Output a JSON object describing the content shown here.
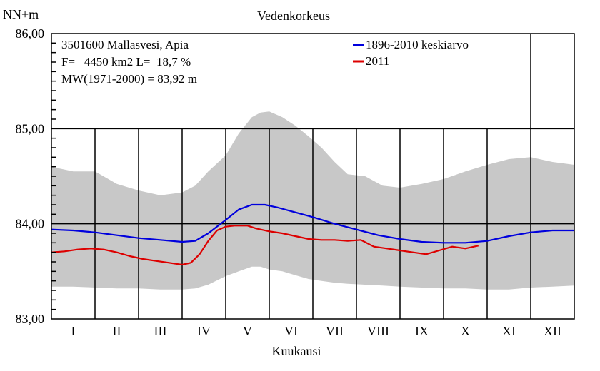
{
  "chart_data": {
    "type": "line",
    "title": "Vedenkorkeus",
    "ylabel": "NN+m",
    "xlabel": "Kuukausi",
    "ylim": [
      83,
      86
    ],
    "yticks": [
      "83,00",
      "84,00",
      "85,00",
      "86,00"
    ],
    "ytick_values": [
      83,
      84,
      85,
      86
    ],
    "months": [
      "I",
      "II",
      "III",
      "IV",
      "V",
      "VI",
      "VII",
      "VIII",
      "IX",
      "X",
      "XI",
      "XII"
    ],
    "info_lines": [
      "3501600 Mallasvesi, Apia",
      "F=   4450 km2 L=  18,7 %",
      "MW(1971-2000) = 83,92 m"
    ],
    "grid": true,
    "legend_position": "top-right",
    "colors": {
      "mean": "#0000dd",
      "year2011": "#dd0000",
      "range": "#c8c8c8"
    },
    "series": [
      {
        "name": "1896-2010 keskiarvo",
        "x_month": [
          0,
          0.5,
          1,
          1.5,
          2,
          2.5,
          3,
          3.3,
          3.6,
          4,
          4.3,
          4.6,
          4.9,
          5.2,
          5.6,
          6,
          6.5,
          7,
          7.5,
          8,
          8.5,
          9,
          9.5,
          10,
          10.5,
          11,
          11.5,
          12
        ],
        "values": [
          83.94,
          83.93,
          83.91,
          83.88,
          83.85,
          83.83,
          83.81,
          83.82,
          83.9,
          84.04,
          84.15,
          84.2,
          84.2,
          84.17,
          84.12,
          84.07,
          84.0,
          83.94,
          83.88,
          83.84,
          83.81,
          83.8,
          83.8,
          83.82,
          83.87,
          83.91,
          83.93,
          83.93
        ]
      },
      {
        "name": "2011",
        "x_month": [
          0,
          0.3,
          0.6,
          0.9,
          1.2,
          1.5,
          1.8,
          2.1,
          2.4,
          2.7,
          3.0,
          3.2,
          3.4,
          3.6,
          3.8,
          4.0,
          4.2,
          4.5,
          4.7,
          5.0,
          5.3,
          5.6,
          5.9,
          6.2,
          6.5,
          6.8,
          7.1,
          7.4,
          7.7,
          8.0,
          8.3,
          8.6,
          8.9,
          9.2,
          9.5,
          9.8
        ],
        "values": [
          83.7,
          83.71,
          83.73,
          83.74,
          83.73,
          83.7,
          83.66,
          83.63,
          83.61,
          83.59,
          83.57,
          83.59,
          83.68,
          83.82,
          83.93,
          83.97,
          83.98,
          83.98,
          83.95,
          83.92,
          83.9,
          83.87,
          83.84,
          83.83,
          83.83,
          83.82,
          83.83,
          83.76,
          83.74,
          83.72,
          83.7,
          83.68,
          83.72,
          83.76,
          83.74,
          83.77
        ]
      }
    ],
    "range_band": {
      "x_month": [
        0,
        0.5,
        1,
        1.5,
        2,
        2.5,
        3,
        3.3,
        3.6,
        4,
        4.3,
        4.6,
        4.8,
        5.0,
        5.3,
        5.6,
        5.9,
        6.2,
        6.5,
        6.8,
        7.2,
        7.6,
        8.0,
        8.5,
        9.0,
        9.5,
        10,
        10.5,
        11,
        11.5,
        12
      ],
      "max": [
        84.6,
        84.55,
        84.55,
        84.42,
        84.35,
        84.3,
        84.33,
        84.4,
        84.55,
        84.72,
        84.95,
        85.12,
        85.17,
        85.18,
        85.12,
        85.03,
        84.92,
        84.8,
        84.65,
        84.52,
        84.5,
        84.4,
        84.38,
        84.42,
        84.47,
        84.55,
        84.62,
        84.68,
        84.7,
        84.65,
        84.62
      ],
      "min": [
        83.34,
        83.34,
        83.33,
        83.32,
        83.32,
        83.31,
        83.31,
        83.32,
        83.36,
        83.45,
        83.5,
        83.55,
        83.55,
        83.52,
        83.5,
        83.46,
        83.42,
        83.4,
        83.38,
        83.37,
        83.36,
        83.35,
        83.34,
        83.33,
        83.32,
        83.32,
        83.31,
        83.31,
        83.33,
        83.34,
        83.35
      ]
    }
  }
}
